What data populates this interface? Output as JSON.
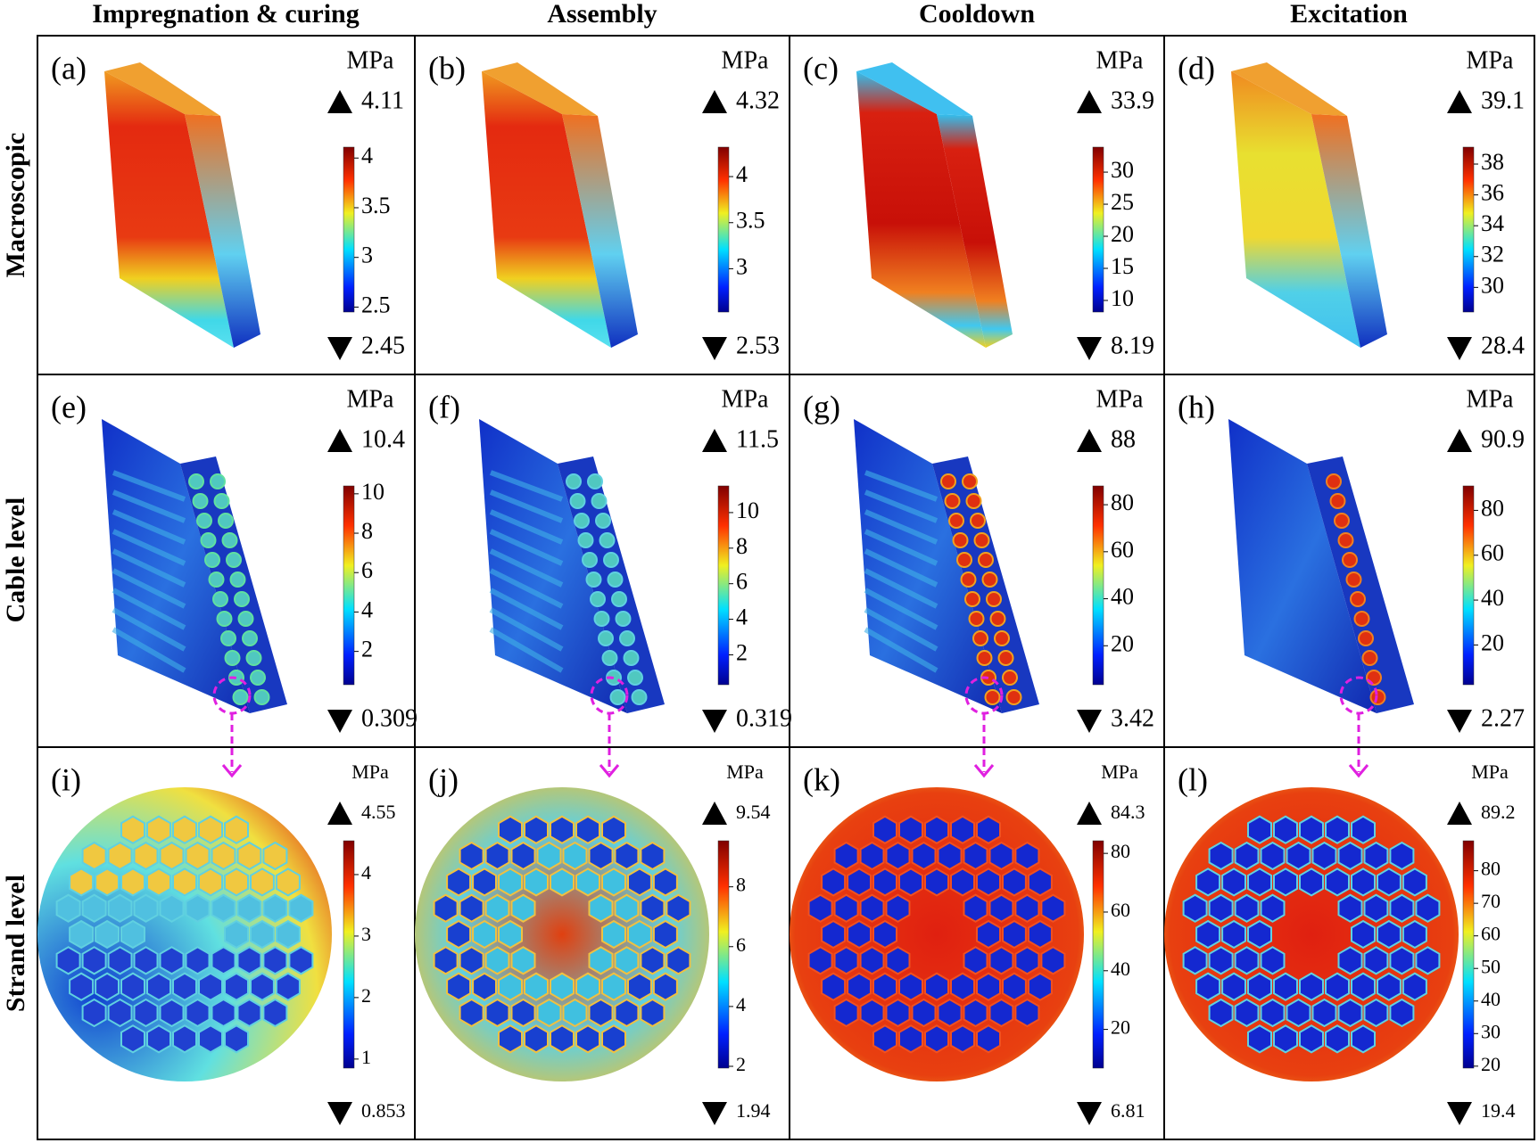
{
  "columns": [
    "Impregnation & curing",
    "Assembly",
    "Cooldown",
    "Excitation"
  ],
  "rows": [
    "Macroscopic",
    "Cable level",
    "Strand level"
  ],
  "panels": [
    {
      "label": "(a)",
      "unit": "MPa",
      "max": 4.11,
      "min": 2.45,
      "ticks": [
        2.5,
        3,
        3.5,
        4
      ]
    },
    {
      "label": "(b)",
      "unit": "MPa",
      "max": 4.32,
      "min": 2.53,
      "ticks": [
        3,
        3.5,
        4
      ]
    },
    {
      "label": "(c)",
      "unit": "MPa",
      "max": 33.9,
      "min": 8.19,
      "ticks": [
        10,
        15,
        20,
        25,
        30
      ]
    },
    {
      "label": "(d)",
      "unit": "MPa",
      "max": 39.1,
      "min": 28.4,
      "ticks": [
        30,
        32,
        34,
        36,
        38
      ]
    },
    {
      "label": "(e)",
      "unit": "MPa",
      "max": 10.4,
      "min": 0.309,
      "ticks": [
        2,
        4,
        6,
        8,
        10
      ]
    },
    {
      "label": "(f)",
      "unit": "MPa",
      "max": 11.5,
      "min": 0.319,
      "ticks": [
        2,
        4,
        6,
        8,
        10
      ]
    },
    {
      "label": "(g)",
      "unit": "MPa",
      "max": 88,
      "min": 3.42,
      "ticks": [
        20,
        40,
        60,
        80
      ]
    },
    {
      "label": "(h)",
      "unit": "MPa",
      "max": 90.9,
      "min": 2.27,
      "ticks": [
        20,
        40,
        60,
        80
      ]
    },
    {
      "label": "(i)",
      "unit": "MPa",
      "max": 4.55,
      "min": 0.853,
      "ticks": [
        1,
        2,
        3,
        4
      ]
    },
    {
      "label": "(j)",
      "unit": "MPa",
      "max": 9.54,
      "min": 1.94,
      "ticks": [
        2,
        4,
        6,
        8
      ]
    },
    {
      "label": "(k)",
      "unit": "MPa",
      "max": 84.3,
      "min": 6.81,
      "ticks": [
        20,
        40,
        60,
        80
      ]
    },
    {
      "label": "(l)",
      "unit": "MPa",
      "max": 89.2,
      "min": 19.4,
      "ticks": [
        20,
        30,
        40,
        50,
        60,
        70,
        80
      ]
    }
  ]
}
